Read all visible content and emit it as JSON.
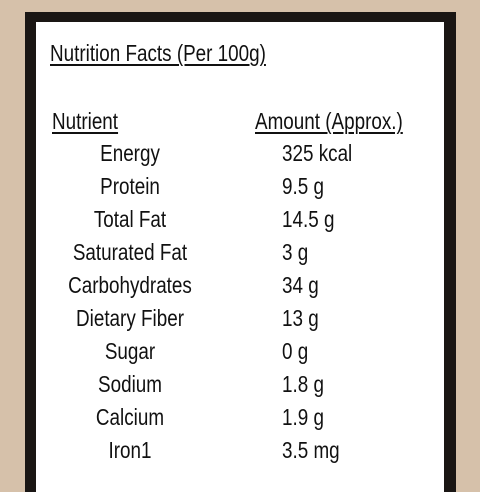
{
  "title": "Nutrition Facts (Per 100g)",
  "table": {
    "header": [
      "Nutrient",
      "Amount (Approx.)"
    ],
    "rows": [
      [
        "Energy",
        "325 kcal"
      ],
      [
        "Protein",
        "9.5 g"
      ],
      [
        "Total Fat",
        "14.5 g"
      ],
      [
        "Saturated Fat",
        "3 g"
      ],
      [
        "Carbohydrates",
        "34 g"
      ],
      [
        "Dietary Fiber",
        "13 g"
      ],
      [
        "Sugar",
        "0 g"
      ],
      [
        "Sodium",
        "1.8 g"
      ],
      [
        "Calcium",
        "1.9 g"
      ],
      [
        "Iron1",
        "3.5 mg"
      ]
    ]
  }
}
